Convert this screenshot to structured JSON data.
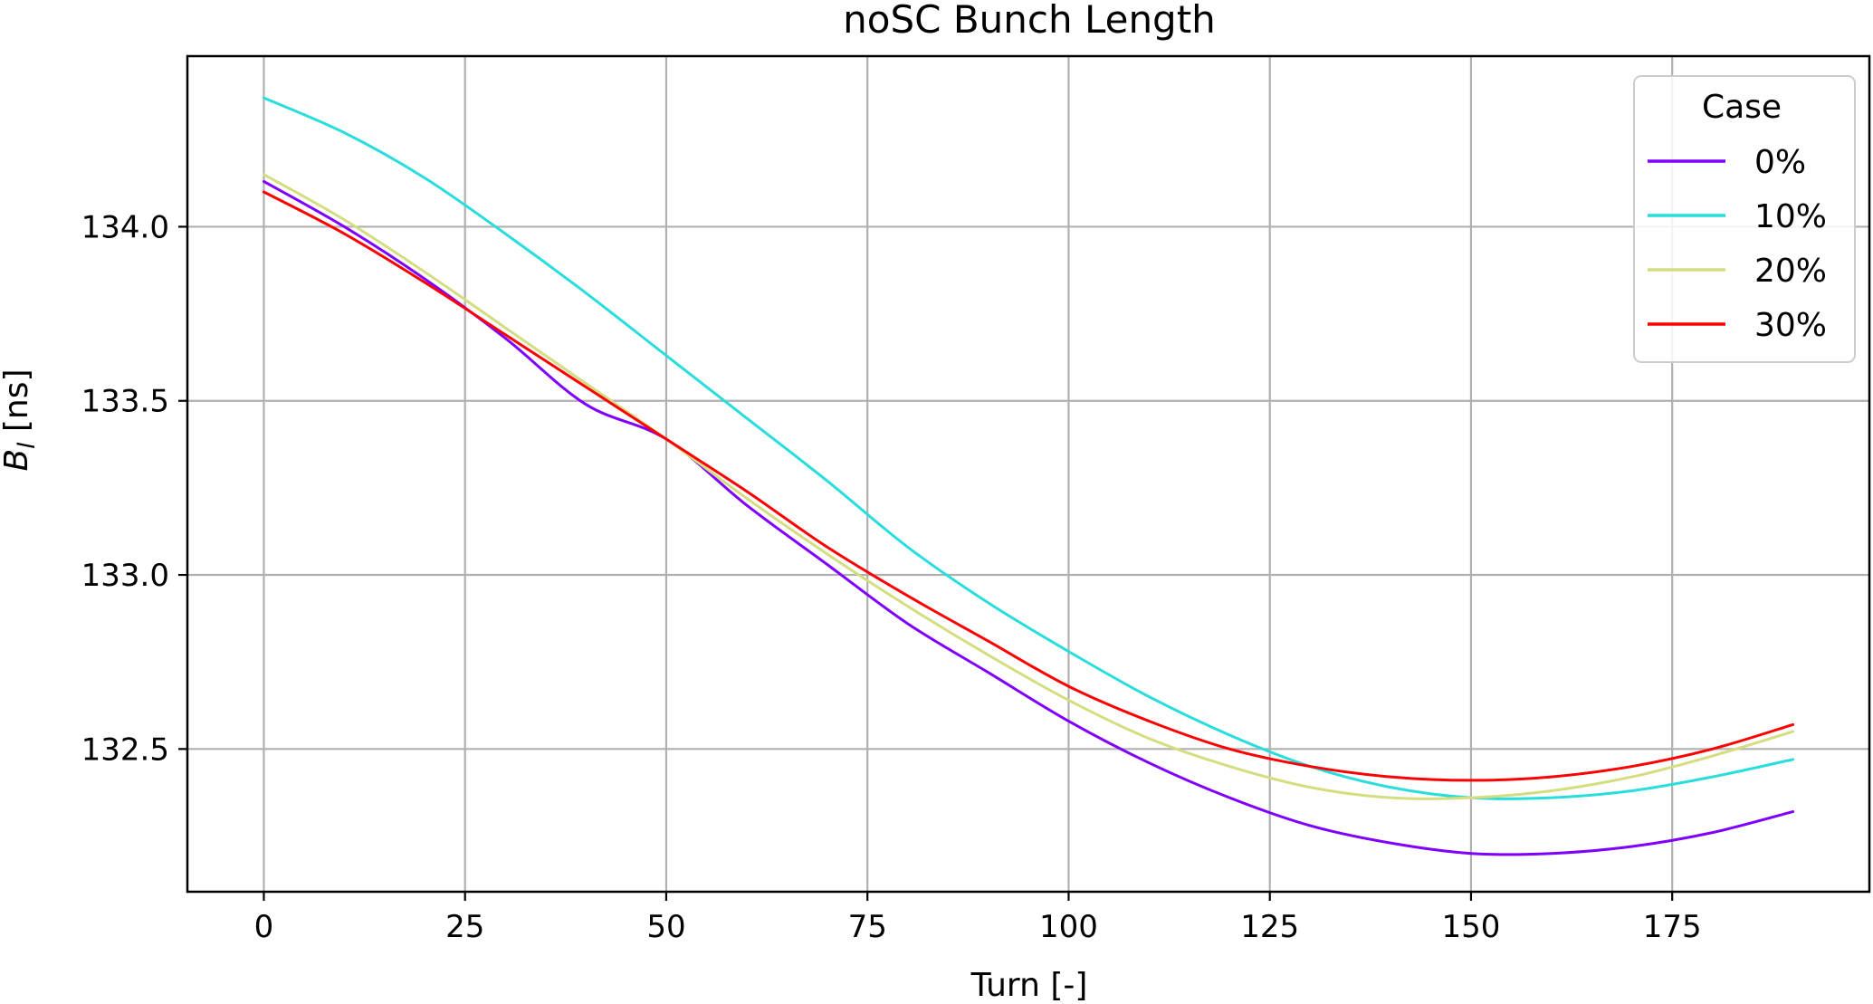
{
  "chart_data": {
    "type": "line",
    "title": "noSC Bunch Length",
    "xlabel": "Turn [-]",
    "ylabel_main": "B",
    "ylabel_sub": "l",
    "ylabel_unit": " [ns]",
    "xlim": [
      -9.5,
      199.5
    ],
    "ylim": [
      132.09,
      134.49
    ],
    "xticks": [
      0,
      25,
      50,
      75,
      100,
      125,
      150,
      175
    ],
    "yticks": [
      132.5,
      133.0,
      133.5,
      134.0
    ],
    "ytick_labels": [
      "132.5",
      "133.0",
      "133.5",
      "134.0"
    ],
    "grid": true,
    "legend": {
      "title": "Case",
      "position": "top-right"
    },
    "x": [
      0,
      10,
      20,
      30,
      40,
      50,
      60,
      70,
      80,
      90,
      100,
      110,
      120,
      130,
      140,
      150,
      160,
      170,
      180,
      190
    ],
    "series": [
      {
        "name": "0%",
        "color": "#8000ff",
        "values": [
          134.13,
          134.0,
          133.85,
          133.68,
          133.49,
          133.39,
          133.2,
          133.03,
          132.86,
          132.72,
          132.58,
          132.46,
          132.36,
          132.28,
          132.23,
          132.2,
          132.2,
          132.22,
          132.26,
          132.32
        ]
      },
      {
        "name": "10%",
        "color": "#2adddd",
        "values": [
          134.37,
          134.27,
          134.14,
          133.98,
          133.81,
          133.63,
          133.45,
          133.27,
          133.08,
          132.92,
          132.78,
          132.65,
          132.54,
          132.45,
          132.39,
          132.36,
          132.36,
          132.38,
          132.42,
          132.47
        ]
      },
      {
        "name": "20%",
        "color": "#d4dd80",
        "values": [
          134.15,
          134.02,
          133.87,
          133.71,
          133.55,
          133.39,
          133.22,
          133.06,
          132.91,
          132.77,
          132.64,
          132.53,
          132.45,
          132.39,
          132.36,
          132.36,
          132.38,
          132.42,
          132.48,
          132.55
        ]
      },
      {
        "name": "30%",
        "color": "#ff0000",
        "values": [
          134.1,
          133.98,
          133.84,
          133.69,
          133.54,
          133.39,
          133.24,
          133.08,
          132.94,
          132.81,
          132.68,
          132.58,
          132.5,
          132.45,
          132.42,
          132.41,
          132.42,
          132.45,
          132.5,
          132.57
        ]
      }
    ]
  }
}
